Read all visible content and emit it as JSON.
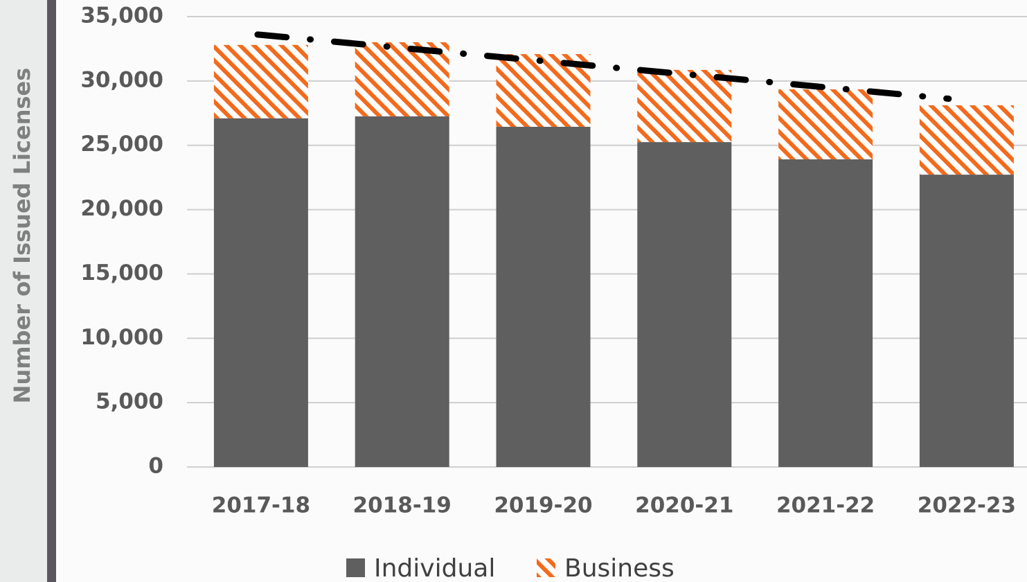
{
  "chart_data": {
    "type": "stacked_bar",
    "y_label": "Number of Issued Licenses",
    "categories": [
      "2017-18",
      "2018-19",
      "2019-20",
      "2020-21",
      "2021-22",
      "2022-23"
    ],
    "series": [
      {
        "name": "Individual",
        "color": "#5f5f5f",
        "hatch": false,
        "values": [
          27100,
          27250,
          26440,
          25250,
          23910,
          22720
        ]
      },
      {
        "name": "Business",
        "color": "#f26b1d",
        "hatch": true,
        "values": [
          5700,
          5760,
          5650,
          5610,
          5440,
          5390
        ]
      }
    ],
    "ylim": [
      0,
      35000
    ],
    "yticks": [
      {
        "value": 0,
        "label": "0"
      },
      {
        "value": 5000,
        "label": "5,000"
      },
      {
        "value": 10000,
        "label": "10,000"
      },
      {
        "value": 15000,
        "label": "15,000"
      },
      {
        "value": 20000,
        "label": "20,000"
      },
      {
        "value": 25000,
        "label": "25,000"
      },
      {
        "value": 30000,
        "label": "30,000"
      },
      {
        "value": 35000,
        "label": "35,000"
      }
    ],
    "grid": true,
    "trendline": "linear",
    "legend": "bottom"
  }
}
